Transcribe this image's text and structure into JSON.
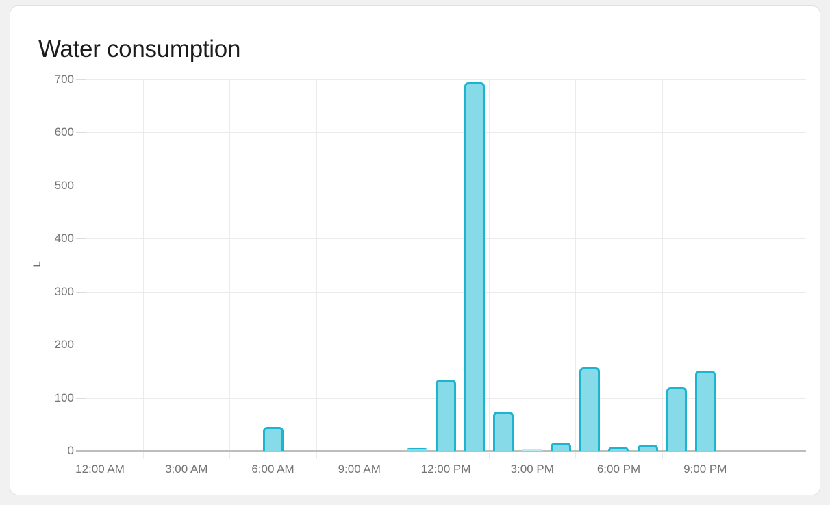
{
  "card": {
    "title": "Water consumption"
  },
  "chart_data": {
    "type": "bar",
    "title": "Water consumption",
    "xlabel": "",
    "ylabel": "L",
    "ylim": [
      0,
      700
    ],
    "ytick_values": [
      0,
      100,
      200,
      300,
      400,
      500,
      600,
      700
    ],
    "xtick_labels": [
      "12:00 AM",
      "3:00 AM",
      "6:00 AM",
      "9:00 AM",
      "12:00 PM",
      "3:00 PM",
      "6:00 PM",
      "9:00 PM"
    ],
    "xtick_hours": [
      0,
      3,
      6,
      9,
      12,
      15,
      18,
      21
    ],
    "x_axis_span_hours": [
      0,
      24
    ],
    "grid": true,
    "legend": false,
    "values_by_hour": [
      0,
      0,
      0,
      0,
      0,
      0,
      45,
      0,
      0,
      0,
      0,
      5,
      134,
      695,
      74,
      2,
      15,
      157,
      8,
      11,
      120,
      151,
      0,
      0
    ],
    "nonzero_points": [
      {
        "time": "6:00 AM",
        "value": 45
      },
      {
        "time": "11:00 AM",
        "value": 5
      },
      {
        "time": "12:00 PM",
        "value": 134
      },
      {
        "time": "1:00 PM",
        "value": 695
      },
      {
        "time": "2:00 PM",
        "value": 74
      },
      {
        "time": "3:00 PM",
        "value": 2
      },
      {
        "time": "4:00 PM",
        "value": 15
      },
      {
        "time": "5:00 PM",
        "value": 157
      },
      {
        "time": "6:00 PM",
        "value": 8
      },
      {
        "time": "7:00 PM",
        "value": 11
      },
      {
        "time": "8:00 PM",
        "value": 120
      },
      {
        "time": "9:00 PM",
        "value": 151
      }
    ],
    "colors": {
      "bar_fill": "#87dbe9",
      "bar_border": "#1cb4cf",
      "grid_line": "#ebebeb",
      "axis_line": "#bdbdbd",
      "tick_label_text": "#747474",
      "title_text": "#1b1b1b",
      "card_background": "#ffffff",
      "page_background": "#f1f1f1"
    }
  }
}
